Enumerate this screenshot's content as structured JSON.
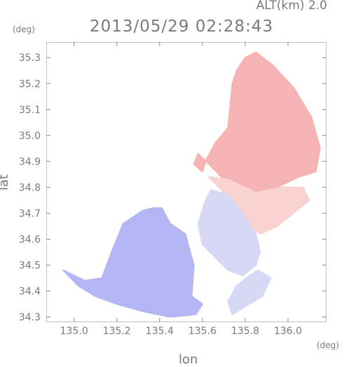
{
  "header": {
    "altitude_label": "ALT(km) 2.0",
    "timestamp": "2013/05/29 02:28:43"
  },
  "axes": {
    "lat_unit": "(deg)",
    "lon_unit": "(deg)",
    "lat_title": "lat",
    "lon_title": "lon"
  },
  "chart_data": {
    "type": "heatmap",
    "xlabel": "lon",
    "ylabel": "lat",
    "xlim": [
      134.87,
      136.18
    ],
    "ylim": [
      34.28,
      35.36
    ],
    "x_ticks": [
      135.0,
      135.2,
      135.4,
      135.6,
      135.8,
      136.0
    ],
    "x_tick_labels": [
      "135.0",
      "135.2",
      "135.4",
      "135.6",
      "135.8",
      "136.0"
    ],
    "y_ticks": [
      34.3,
      34.4,
      34.5,
      34.6,
      34.7,
      34.8,
      34.9,
      35.0,
      35.1,
      35.2,
      35.3
    ],
    "y_tick_labels": [
      "34.3",
      "34.4",
      "34.5",
      "34.6",
      "34.7",
      "34.8",
      "34.9",
      "35.0",
      "35.1",
      "35.2",
      "35.3"
    ],
    "colors": {
      "positive": "#f6b3b3",
      "positive_light": "#f9d2d2",
      "negative": "#b3b6f2",
      "negative_light": "#d6d8f6",
      "frame": "#8a8a8a"
    },
    "regions": [
      {
        "name": "northeast-positive-lobe",
        "color_key": "positive",
        "polygon": [
          [
            135.66,
            34.97
          ],
          [
            135.72,
            35.03
          ],
          [
            135.74,
            35.2
          ],
          [
            135.76,
            35.25
          ],
          [
            135.8,
            35.3
          ],
          [
            135.85,
            35.32
          ],
          [
            135.93,
            35.27
          ],
          [
            136.03,
            35.18
          ],
          [
            136.11,
            35.07
          ],
          [
            136.15,
            34.95
          ],
          [
            136.13,
            34.86
          ],
          [
            136.05,
            34.84
          ],
          [
            135.95,
            34.8
          ],
          [
            135.88,
            34.77
          ],
          [
            135.78,
            34.79
          ],
          [
            135.7,
            34.83
          ],
          [
            135.63,
            34.89
          ],
          [
            135.58,
            34.93
          ],
          [
            135.56,
            34.89
          ],
          [
            135.6,
            34.86
          ],
          [
            135.62,
            34.91
          ],
          [
            135.66,
            34.97
          ]
        ]
      },
      {
        "name": "east-mixed-zone",
        "color_key": "positive_light",
        "polygon": [
          [
            135.63,
            34.84
          ],
          [
            135.72,
            34.83
          ],
          [
            135.85,
            34.78
          ],
          [
            135.97,
            34.8
          ],
          [
            136.07,
            34.8
          ],
          [
            136.1,
            34.75
          ],
          [
            135.95,
            34.65
          ],
          [
            135.87,
            34.62
          ],
          [
            135.82,
            34.65
          ],
          [
            135.78,
            34.72
          ],
          [
            135.7,
            34.78
          ],
          [
            135.63,
            34.84
          ]
        ]
      },
      {
        "name": "southeast-negative-lobe",
        "color_key": "negative_light",
        "polygon": [
          [
            135.64,
            34.79
          ],
          [
            135.72,
            34.77
          ],
          [
            135.78,
            34.71
          ],
          [
            135.85,
            34.62
          ],
          [
            135.87,
            34.55
          ],
          [
            135.85,
            34.5
          ],
          [
            135.79,
            34.46
          ],
          [
            135.72,
            34.48
          ],
          [
            135.66,
            34.53
          ],
          [
            135.6,
            34.58
          ],
          [
            135.58,
            34.66
          ],
          [
            135.61,
            34.74
          ],
          [
            135.64,
            34.79
          ]
        ]
      },
      {
        "name": "west-negative-lobe",
        "color_key": "negative",
        "polygon": [
          [
            134.95,
            34.48
          ],
          [
            135.05,
            34.44
          ],
          [
            135.13,
            34.45
          ],
          [
            135.18,
            34.56
          ],
          [
            135.23,
            34.66
          ],
          [
            135.32,
            34.71
          ],
          [
            135.37,
            34.72
          ],
          [
            135.41,
            34.72
          ],
          [
            135.45,
            34.66
          ],
          [
            135.52,
            34.62
          ],
          [
            135.56,
            34.5
          ],
          [
            135.55,
            34.38
          ],
          [
            135.6,
            34.35
          ],
          [
            135.57,
            34.31
          ],
          [
            135.45,
            34.3
          ],
          [
            135.33,
            34.32
          ],
          [
            135.2,
            34.35
          ],
          [
            135.1,
            34.38
          ],
          [
            135.02,
            34.42
          ],
          [
            134.95,
            34.48
          ]
        ]
      },
      {
        "name": "south-negative-patch",
        "color_key": "negative_light",
        "polygon": [
          [
            135.76,
            34.42
          ],
          [
            135.82,
            34.46
          ],
          [
            135.86,
            34.48
          ],
          [
            135.92,
            34.45
          ],
          [
            135.88,
            34.38
          ],
          [
            135.8,
            34.34
          ],
          [
            135.74,
            34.31
          ],
          [
            135.72,
            34.36
          ],
          [
            135.76,
            34.42
          ]
        ]
      }
    ]
  }
}
